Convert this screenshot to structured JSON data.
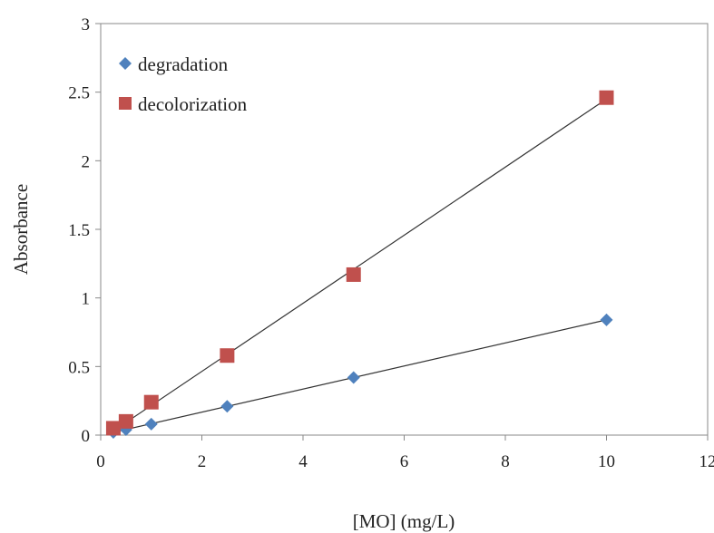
{
  "chart_data": {
    "type": "scatter",
    "title": "",
    "xlabel": "[MO] (mg/L)",
    "ylabel": "Absorbance",
    "xlim": [
      0,
      12
    ],
    "ylim": [
      0,
      3
    ],
    "xticks": [
      "0",
      "2",
      "4",
      "6",
      "8",
      "10",
      "12"
    ],
    "yticks": [
      "0",
      "0.5",
      "1",
      "1.5",
      "2",
      "2.5",
      "3"
    ],
    "grid": false,
    "legend_position": "top-left",
    "series": [
      {
        "name": "degradation",
        "marker": "diamond",
        "color": "#4f81bd",
        "x": [
          0.25,
          0.5,
          1,
          2.5,
          5,
          10
        ],
        "y": [
          0.02,
          0.04,
          0.08,
          0.21,
          0.42,
          0.84
        ],
        "trendline": [
          [
            0.25,
            0.02
          ],
          [
            10,
            0.84
          ]
        ]
      },
      {
        "name": "decolorization",
        "marker": "square",
        "color": "#c0504d",
        "x": [
          0.25,
          0.5,
          1,
          2.5,
          5,
          10
        ],
        "y": [
          0.05,
          0.1,
          0.24,
          0.58,
          1.17,
          2.46
        ],
        "trendline": [
          [
            0.25,
            0.03
          ],
          [
            10,
            2.45
          ]
        ]
      }
    ]
  }
}
